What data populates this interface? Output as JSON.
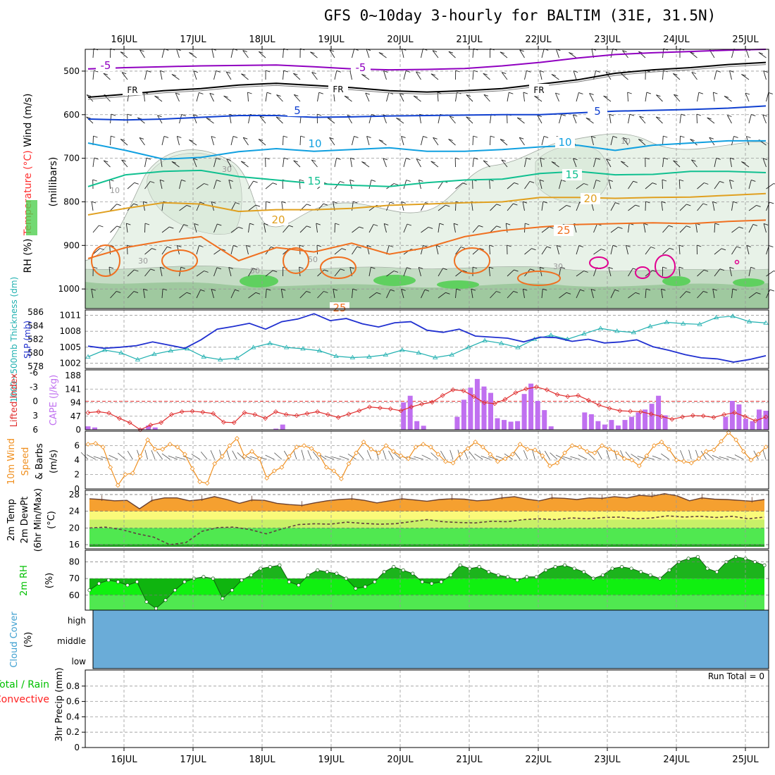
{
  "title": "GFS 0~10day 3-hourly for BALTIM (31E, 31.5N)",
  "colors": {
    "wind_label": "#000000",
    "temperature_label": "#ff3030",
    "rh_label": "#000000",
    "thickness": "#20b0b0",
    "slp": "#2030d0",
    "cape": "#c070f0",
    "lifted": "#e03030",
    "wind10": "#f09020",
    "temp2m": "#f5a030",
    "dewpt2m": "#604040",
    "rh2m": "#00c000",
    "cloud": "#6aacd8",
    "precip_total": "#00c000",
    "precip_conv": "#ff2020",
    "iso_neg5": "#9000c0",
    "iso_fr": "#000000",
    "iso_5": "#1040d0",
    "iso_10": "#10a0e0",
    "iso_15": "#10c090",
    "iso_20": "#e0a020",
    "iso_25": "#f07020",
    "iso_30": "#e00090"
  },
  "chart_data": [
    {
      "type": "line",
      "name": "upper-air",
      "title": "GFS 0~10day 3-hourly for BALTIM (31E, 31.5N)",
      "x_tick_labels": [
        "16JUL",
        "17JUL",
        "18JUL",
        "19JUL",
        "20JUL",
        "21JUL",
        "22JUL",
        "23JUL",
        "24JUL",
        "25JUL"
      ],
      "ylabel_parts": [
        "Wind (m/s)",
        "Temperature (°C)",
        "RH (%)"
      ],
      "ylabel_sub": "(millibars)",
      "y_ticks": [
        "500",
        "600",
        "700",
        "800",
        "900",
        "1000"
      ],
      "ylim": [
        450,
        1045
      ],
      "isotherm_labels": [
        "-5",
        "-5",
        "FR",
        "FR",
        "FR",
        "5",
        "5",
        "10",
        "10",
        "15",
        "15",
        "20",
        "20",
        "25",
        "25"
      ],
      "rh_contour_labels": [
        "10",
        "30",
        "30",
        "50",
        "50",
        "30",
        "10"
      ],
      "isotherms": [
        {
          "label": "-5",
          "pressure": [
            495,
            492,
            490,
            488,
            487,
            486,
            490,
            495,
            497,
            496,
            494,
            488,
            480,
            470,
            462,
            458,
            455,
            452,
            450
          ]
        },
        {
          "label": "FR",
          "pressure": [
            560,
            553,
            545,
            540,
            532,
            528,
            533,
            538,
            545,
            548,
            545,
            540,
            530,
            520,
            505,
            497,
            492,
            485,
            480
          ]
        },
        {
          "label": "5",
          "pressure": [
            610,
            612,
            610,
            606,
            602,
            602,
            606,
            605,
            603,
            602,
            601,
            600,
            600,
            596,
            592,
            590,
            588,
            585,
            580
          ]
        },
        {
          "label": "10",
          "pressure": [
            665,
            682,
            702,
            698,
            685,
            678,
            684,
            680,
            676,
            684,
            684,
            680,
            674,
            670,
            682,
            670,
            665,
            660,
            660
          ]
        },
        {
          "label": "15",
          "pressure": [
            765,
            738,
            730,
            728,
            742,
            750,
            758,
            762,
            765,
            756,
            750,
            748,
            735,
            730,
            738,
            737,
            730,
            730,
            733
          ]
        },
        {
          "label": "20",
          "pressure": [
            830,
            815,
            802,
            805,
            822,
            818,
            818,
            815,
            808,
            805,
            802,
            800,
            790,
            790,
            792,
            790,
            789,
            785,
            781
          ]
        },
        {
          "label": "25",
          "pressure": [
            930,
            905,
            890,
            880,
            935,
            905,
            915,
            895,
            920,
            905,
            880,
            866,
            858,
            852,
            850,
            848,
            850,
            845,
            842
          ]
        }
      ],
      "wind_unit": "m/s",
      "pressure_unit": "millibars"
    },
    {
      "type": "line",
      "name": "thickness-slp",
      "ylabel_thickness": "1000~500mb Thickness (dm)",
      "ylabel_slp": "SLP (mb)",
      "thickness_ticks": [
        "586",
        "584",
        "582",
        "580",
        "578"
      ],
      "slp_ticks": [
        "1011",
        "1008",
        "1005",
        "1002"
      ],
      "thickness_ylim": [
        578,
        586
      ],
      "slp_ylim": [
        1001,
        1012
      ],
      "series": [
        {
          "name": "1000~500mb Thickness (dm)",
          "values": [
            579.4,
            580.4,
            580.0,
            579.0,
            579.8,
            580.3,
            580.6,
            579.4,
            579.0,
            579.2,
            580.8,
            581.4,
            580.8,
            580.6,
            580.3,
            579.5,
            579.3,
            579.4,
            579.7,
            580.4,
            580.0,
            579.3,
            579.7,
            580.8,
            581.8,
            581.4,
            580.8,
            582.0,
            582.6,
            582.0,
            582.8,
            583.6,
            583.2,
            583.0,
            583.9,
            584.5,
            584.3,
            584.2,
            585.2,
            585.4,
            584.6,
            584.4
          ]
        },
        {
          "name": "SLP (mb)",
          "values": [
            1005.2,
            1004.8,
            1005.0,
            1005.3,
            1006.0,
            1005.4,
            1004.8,
            1006.4,
            1008.4,
            1008.9,
            1009.5,
            1008.4,
            1009.8,
            1010.3,
            1011.3,
            1010.0,
            1010.4,
            1009.4,
            1008.8,
            1009.6,
            1009.8,
            1008.2,
            1007.8,
            1008.4,
            1007.1,
            1006.9,
            1006.7,
            1006.0,
            1006.9,
            1006.8,
            1006.1,
            1006.5,
            1005.8,
            1006.0,
            1006.4,
            1005.1,
            1004.4,
            1003.6,
            1003.0,
            1002.8,
            1002.2,
            1002.7,
            1003.4
          ]
        }
      ]
    },
    {
      "type": "bar",
      "name": "cape-lifted-index",
      "ylabel_li": "Lifted Index",
      "ylabel_cape": "CAPE (J/kg)",
      "li_ticks": [
        "-6",
        "-3",
        "0",
        "3",
        "6"
      ],
      "cape_ticks": [
        "188",
        "141",
        "94",
        "47",
        "0"
      ],
      "cape_ylim": [
        0,
        188
      ],
      "li_ylim": [
        -6,
        6
      ],
      "cape_values": [
        12,
        8,
        0,
        0,
        0,
        0,
        0,
        0,
        4,
        15,
        8,
        0,
        0,
        0,
        0,
        0,
        0,
        0,
        0,
        0,
        0,
        0,
        0,
        0,
        0,
        0,
        0,
        0,
        4,
        18,
        0,
        0,
        0,
        0,
        0,
        0,
        0,
        0,
        0,
        0,
        0,
        0,
        0,
        0,
        0,
        0,
        0,
        95,
        118,
        30,
        14,
        0,
        0,
        0,
        0,
        45,
        104,
        146,
        176,
        150,
        128,
        40,
        34,
        28,
        30,
        124,
        160,
        100,
        68,
        12,
        0,
        0,
        0,
        0,
        60,
        54,
        30,
        18,
        34,
        15,
        34,
        45,
        60,
        70,
        90,
        118,
        50,
        0,
        0,
        0,
        0,
        0,
        0,
        0,
        0,
        45,
        100,
        88,
        38,
        30,
        70,
        66
      ],
      "li_values": [
        2.4,
        2.2,
        2.5,
        3.6,
        4.5,
        6.0,
        5.0,
        4.5,
        2.8,
        2.2,
        2.1,
        2.3,
        2.6,
        4.4,
        4.5,
        2.4,
        2.8,
        3.6,
        2.2,
        2.8,
        3.0,
        2.6,
        2.2,
        2.8,
        3.4,
        2.7,
        2.0,
        1.2,
        1.4,
        1.6,
        2.0,
        1.2,
        0.6,
        0.2,
        -1.2,
        -2.4,
        -2.2,
        -1.0,
        0.3,
        0.5,
        -0.4,
        -1.8,
        -2.6,
        -3.0,
        -2.4,
        -1.4,
        -1.0,
        -1.2,
        -0.2,
        0.8,
        1.5,
        2.0,
        2.1,
        2.2,
        2.7,
        3.2,
        3.8,
        3.3,
        3.0,
        3.1,
        3.4,
        2.8,
        2.4,
        3.2,
        4.1,
        3.3
      ],
      "reference_line": 0
    },
    {
      "type": "line",
      "name": "wind10m",
      "ylabel": "10m Wind Speed & Barbs (m/s)",
      "y_ticks": [
        "0",
        "2",
        "4",
        "6"
      ],
      "ylim": [
        0,
        8
      ],
      "values": [
        6.2,
        6.3,
        5.8,
        3.0,
        0.5,
        2.0,
        2.2,
        4.5,
        6.8,
        5.5,
        5.5,
        6.2,
        5.8,
        4.8,
        2.8,
        1.0,
        0.8,
        3.5,
        4.5,
        6.0,
        7.0,
        4.5,
        5.2,
        4.2,
        1.5,
        2.5,
        3.0,
        4.5,
        5.8,
        6.0,
        5.6,
        4.8,
        3.0,
        2.5,
        1.4,
        3.5,
        5.0,
        6.5,
        5.5,
        5.0,
        6.0,
        5.2,
        4.6,
        4.2,
        5.8,
        6.2,
        5.8,
        4.8,
        3.8,
        3.6,
        4.8,
        5.6,
        6.5,
        5.8,
        4.8,
        3.8,
        4.2,
        4.8,
        6.2,
        5.5,
        5.4,
        4.6,
        3.2,
        3.6,
        5.0,
        6.0,
        5.8,
        5.2,
        5.0,
        6.0,
        5.5,
        5.0,
        4.2,
        4.0,
        3.2,
        4.6,
        6.0,
        6.5,
        5.5,
        4.0,
        3.8,
        3.6,
        4.2,
        5.2,
        5.4,
        6.6,
        7.8,
        6.8,
        5.2,
        4.0,
        4.8,
        5.8
      ]
    },
    {
      "type": "area",
      "name": "temp2m",
      "ylabel_parts": [
        "2m Temp",
        "2m DewPt",
        "(6hr Min/Max)",
        "(°C)"
      ],
      "y_ticks": [
        "16",
        "20",
        "24",
        "28"
      ],
      "ylim": [
        15,
        29
      ],
      "series": [
        {
          "name": "2m Temp",
          "values": [
            27,
            26.8,
            26.5,
            26.6,
            24.6,
            26.6,
            27.2,
            27.2,
            26.5,
            26.8,
            27.5,
            26.8,
            25.9,
            26.7,
            26.6,
            25.9,
            25.6,
            25.4,
            26.0,
            26.5,
            26.8,
            27.0,
            26.6,
            26.0,
            26.5,
            27.0,
            26.7,
            26.4,
            26.8,
            27.0,
            26.9,
            26.5,
            26.7,
            27.2,
            27.5,
            26.9,
            26.5,
            27.2,
            27.1,
            26.8,
            27.2,
            27.1,
            27.5,
            27.2,
            27.8,
            27.6,
            28.2,
            27.7,
            26.5,
            27.2,
            26.9,
            26.8,
            26.6,
            26.4,
            26.8
          ]
        },
        {
          "name": "2m DewPt",
          "values": [
            20.0,
            20.2,
            19.6,
            18.6,
            17.8,
            16.0,
            16.5,
            19.2,
            20.1,
            20.2,
            19.6,
            18.6,
            19.8,
            20.8,
            21.0,
            20.9,
            21.4,
            21.1,
            20.9,
            21.0,
            21.5,
            22.0,
            21.5,
            21.3,
            21.2,
            21.6,
            21.5,
            22.0,
            22.2,
            22.0,
            22.4,
            22.2,
            22.5,
            22.6,
            22.2,
            22.4,
            22.9,
            22.6,
            22.8,
            22.5,
            22.8,
            22.2,
            22.6
          ]
        }
      ],
      "bands": [
        [
          15.5,
          16.1
        ],
        [
          16.1,
          20
        ],
        [
          20,
          22
        ],
        [
          22,
          24
        ]
      ]
    },
    {
      "type": "area",
      "name": "rh2m",
      "ylabel": "2m RH (%)",
      "y_ticks": [
        "60",
        "70",
        "80"
      ],
      "ylim": [
        51,
        87
      ],
      "values": [
        63,
        67,
        69,
        68,
        66,
        68,
        56,
        52,
        57,
        63,
        68,
        70,
        71,
        70,
        58,
        63,
        69,
        72,
        76,
        77,
        78,
        68,
        66,
        72,
        75,
        74,
        73,
        70,
        64,
        65,
        68,
        74,
        77,
        75,
        73,
        68,
        67,
        68,
        72,
        78,
        76,
        77,
        74,
        72,
        71,
        69,
        71,
        71,
        75,
        77,
        78,
        76,
        74,
        70,
        72,
        76,
        77,
        76,
        74,
        72,
        70,
        75,
        80,
        82,
        83,
        76,
        74,
        80,
        83,
        82,
        80,
        78
      ]
    },
    {
      "type": "area",
      "name": "cloud-cover",
      "ylabel": "Cloud Cover (%)",
      "levels": [
        "high",
        "middle",
        "low"
      ]
    },
    {
      "type": "bar",
      "name": "precip",
      "ylabel_total": "Total / Rain",
      "ylabel_conv": "Convective",
      "ylabel_main": "3hr Precip (mm)",
      "y_ticks": [
        "0",
        "0.2",
        "0.4",
        "0.6",
        "0.8"
      ],
      "ylim": [
        0,
        1.0
      ],
      "run_total_label": "Run Total = 0",
      "x_tick_labels": [
        "16JUL",
        "17JUL",
        "18JUL",
        "19JUL",
        "20JUL",
        "21JUL",
        "22JUL",
        "23JUL",
        "24JUL",
        "25JUL"
      ]
    }
  ]
}
